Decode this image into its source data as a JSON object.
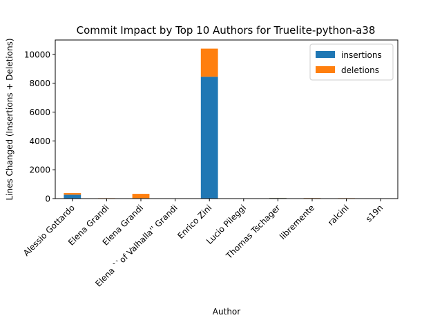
{
  "chart_data": {
    "type": "bar",
    "stacked": true,
    "title": "Commit Impact by Top 10 Authors for Truelite-python-a38",
    "xlabel": "Author",
    "ylabel": "Lines Changed (Insertions + Deletions)",
    "categories": [
      "Alessio Gottardo",
      "Elena  Grandi",
      "Elena Grandi",
      "Elena ``of Valhalla'' Grandi",
      "Enrico Zini",
      "Lucio Pileggi",
      "Thomas Tschager",
      "libremente",
      "ralcini",
      "s19n"
    ],
    "series": [
      {
        "name": "insertions",
        "color": "#1f77b4",
        "values": [
          270,
          10,
          30,
          0,
          8450,
          0,
          40,
          30,
          10,
          0
        ]
      },
      {
        "name": "deletions",
        "color": "#ff7f0e",
        "values": [
          110,
          20,
          300,
          0,
          1950,
          0,
          10,
          10,
          20,
          0
        ]
      }
    ],
    "ylim": [
      0,
      11000
    ],
    "yticks": [
      0,
      2000,
      4000,
      6000,
      8000,
      10000
    ],
    "legend_position": "top-right",
    "grid": false
  }
}
